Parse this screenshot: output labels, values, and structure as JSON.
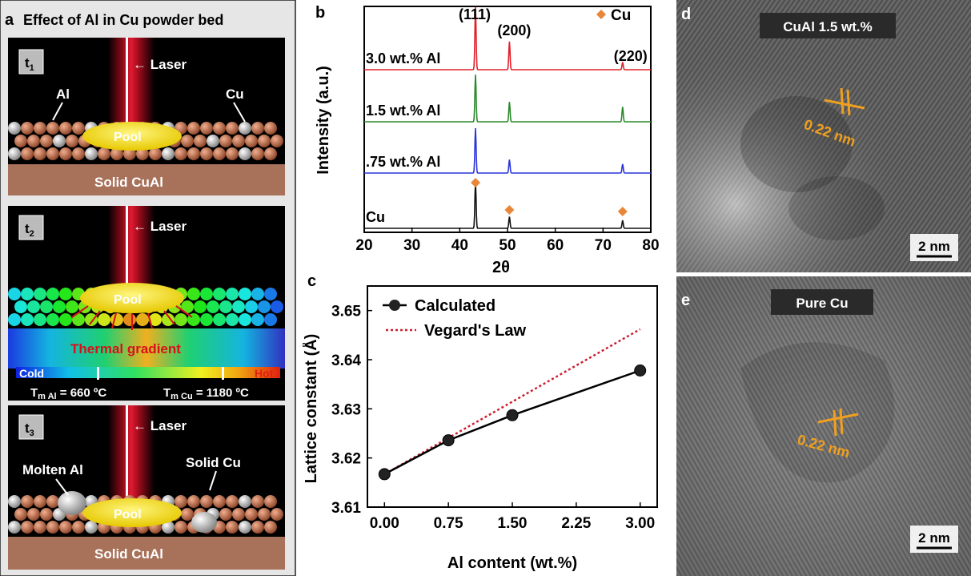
{
  "panel_a": {
    "letter": "a",
    "title": "Effect of Al in Cu powder bed",
    "t_main": "t",
    "t1_sub": "1",
    "t2_sub": "2",
    "t3_sub": "3",
    "laser": "Laser",
    "al": "Al",
    "cu": "Cu",
    "pool": "Pool",
    "solid_cual": "Solid CuAl",
    "thermal_gradient": "Thermal gradient",
    "cold": "Cold",
    "hot": "Hot",
    "tm_t": "T",
    "tm_al_sub": "m Al",
    "tm_al_val": " = 660 ºC",
    "tm_cu_sub": "m Cu",
    "tm_cu_val": " = 1180 ºC",
    "molten_al": "Molten Al",
    "solid_cu": "Solid Cu",
    "colors": {
      "copper": "#b06a4a",
      "substrate": "#a8715a",
      "pool": "#f3e31e",
      "laser": "#d8102a"
    }
  },
  "panel_d": {
    "letter": "d",
    "label": "CuAl 1.5 wt.%",
    "spacing": "0.22 nm",
    "scale": "2 nm"
  },
  "panel_e": {
    "letter": "e",
    "label": "Pure Cu",
    "spacing": "0.22 nm",
    "scale": "2 nm"
  },
  "chart_data": [
    {
      "panel": "b",
      "type": "line",
      "xlabel": "2θ",
      "ylabel": "Intensity (a.u.)",
      "xlim": [
        20,
        80
      ],
      "xticks": [
        20,
        30,
        40,
        50,
        60,
        70,
        80
      ],
      "series": [
        {
          "name": "3.0 wt.% Al",
          "color": "#e0202a",
          "peaks": [
            [
              43.3,
              1.0
            ],
            [
              50.4,
              0.45
            ],
            [
              74.1,
              0.12
            ]
          ]
        },
        {
          "name": "1.5 wt.% Al",
          "color": "#2a8a2a",
          "peaks": [
            [
              43.3,
              0.95
            ],
            [
              50.4,
              0.4
            ],
            [
              74.1,
              0.3
            ]
          ]
        },
        {
          "name": ".75 wt.% Al",
          "color": "#2a35d8",
          "peaks": [
            [
              43.3,
              1.0
            ],
            [
              50.4,
              0.3
            ],
            [
              74.1,
              0.2
            ]
          ]
        },
        {
          "name": "Cu",
          "color": "#111111",
          "peaks": [
            [
              43.3,
              1.0
            ],
            [
              50.4,
              0.25
            ],
            [
              74.1,
              0.17
            ]
          ]
        }
      ],
      "peak_labels": [
        {
          "text": "(111)",
          "x": 43.3
        },
        {
          "text": "(200)",
          "x": 50.4
        },
        {
          "text": "(220)",
          "x": 74.1
        }
      ],
      "legend": "Cu",
      "marker_color": "#e8873a"
    },
    {
      "panel": "c",
      "type": "line",
      "xlabel": "Al content (wt.%)",
      "ylabel": "Lattice constant (Å)",
      "xlim": [
        -0.2,
        3.2
      ],
      "ylim": [
        3.61,
        3.655
      ],
      "xticks": [
        "0.00",
        "0.75",
        "1.50",
        "2.25",
        "3.00"
      ],
      "yticks": [
        "3.61",
        "3.62",
        "3.63",
        "3.64",
        "3.65"
      ],
      "series": [
        {
          "name": "Calculated",
          "x": [
            0.0,
            0.75,
            1.5,
            3.0
          ],
          "y": [
            3.6167,
            3.6236,
            3.6287,
            3.6378
          ]
        },
        {
          "name": "Vegard's Law",
          "x": [
            0.0,
            3.0
          ],
          "y": [
            3.6167,
            3.6462
          ],
          "color": "#cc2030"
        }
      ]
    }
  ]
}
